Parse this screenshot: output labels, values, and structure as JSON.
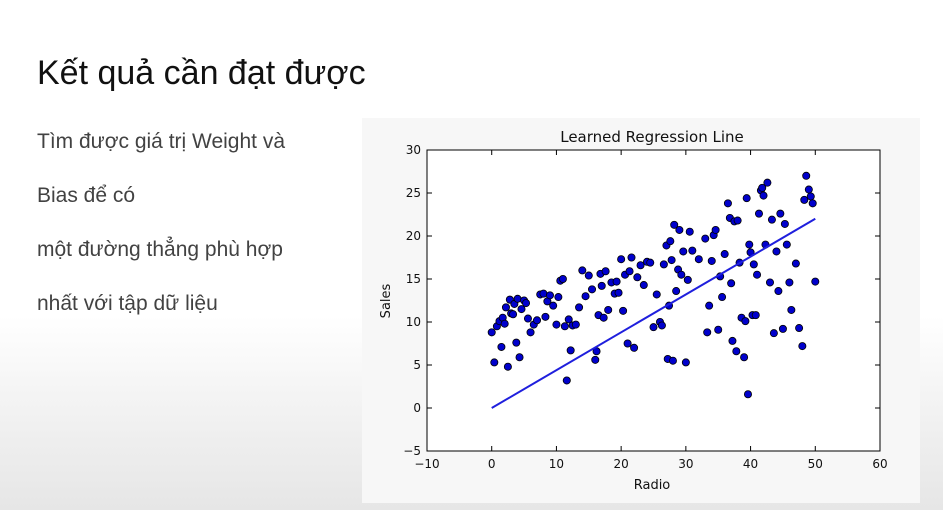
{
  "slide": {
    "title": "Kết quả cần đạt được",
    "bullets": [
      "Tìm được giá trị Weight và",
      "Bias để có",
      "một đường thẳng phù hợp",
      "nhất với tập dữ liệu"
    ]
  },
  "chart_data": {
    "type": "scatter",
    "title": "Learned Regression Line",
    "xlabel": "Radio",
    "ylabel": "Sales",
    "xlim": [
      -10,
      60
    ],
    "ylim": [
      -5,
      30
    ],
    "xticks": [
      "−10",
      "0",
      "10",
      "20",
      "30",
      "40",
      "50",
      "60"
    ],
    "yticks": [
      "−5",
      "0",
      "5",
      "10",
      "15",
      "20",
      "25",
      "30"
    ],
    "grid": false,
    "legend": "none",
    "point_color": "#0000cc",
    "line_color": "#1f1fdd",
    "regression_line": [
      [
        0,
        0
      ],
      [
        50,
        22
      ]
    ],
    "points": [
      [
        0,
        8.8
      ],
      [
        0.4,
        5.3
      ],
      [
        0.8,
        9.5
      ],
      [
        1.2,
        10.1
      ],
      [
        1.5,
        7.1
      ],
      [
        1.7,
        10.5
      ],
      [
        2,
        9.8
      ],
      [
        2.2,
        11.7
      ],
      [
        2.5,
        4.8
      ],
      [
        2.8,
        12.6
      ],
      [
        3,
        11
      ],
      [
        3.3,
        10.9
      ],
      [
        3.5,
        12.1
      ],
      [
        3.8,
        7.6
      ],
      [
        4,
        12.7
      ],
      [
        4.3,
        5.9
      ],
      [
        4.6,
        11.5
      ],
      [
        5,
        12.5
      ],
      [
        5.3,
        12.2
      ],
      [
        5.6,
        10.4
      ],
      [
        6,
        8.8
      ],
      [
        6.5,
        9.7
      ],
      [
        7,
        10.2
      ],
      [
        7.5,
        13.2
      ],
      [
        8,
        13.3
      ],
      [
        8.3,
        10.6
      ],
      [
        8.6,
        12.4
      ],
      [
        9,
        13.1
      ],
      [
        9.5,
        11.9
      ],
      [
        10,
        9.7
      ],
      [
        10.3,
        12.9
      ],
      [
        10.6,
        14.8
      ],
      [
        11,
        15
      ],
      [
        11.3,
        9.5
      ],
      [
        11.6,
        3.2
      ],
      [
        11.9,
        10.3
      ],
      [
        12.2,
        6.7
      ],
      [
        12.5,
        9.6
      ],
      [
        13,
        9.7
      ],
      [
        13.5,
        11.7
      ],
      [
        14,
        16
      ],
      [
        14.5,
        13
      ],
      [
        15,
        15.4
      ],
      [
        15.5,
        13.8
      ],
      [
        16,
        5.6
      ],
      [
        16.2,
        6.6
      ],
      [
        16.5,
        10.8
      ],
      [
        16.8,
        15.6
      ],
      [
        17,
        14.2
      ],
      [
        17.3,
        10.5
      ],
      [
        17.6,
        15.9
      ],
      [
        18,
        11.4
      ],
      [
        18.5,
        14.6
      ],
      [
        19,
        13.3
      ],
      [
        19.3,
        14.7
      ],
      [
        19.6,
        13.4
      ],
      [
        20,
        17.3
      ],
      [
        20.3,
        11.3
      ],
      [
        20.6,
        15.5
      ],
      [
        21,
        7.5
      ],
      [
        21.3,
        15.9
      ],
      [
        21.6,
        17.5
      ],
      [
        22,
        7
      ],
      [
        22.5,
        15.2
      ],
      [
        23,
        16.6
      ],
      [
        23.5,
        14.3
      ],
      [
        24,
        17
      ],
      [
        24.5,
        16.9
      ],
      [
        25,
        9.4
      ],
      [
        25.5,
        13.2
      ],
      [
        26,
        10
      ],
      [
        26.3,
        9.6
      ],
      [
        26.6,
        16.7
      ],
      [
        27,
        18.9
      ],
      [
        27.2,
        5.7
      ],
      [
        27.4,
        11.9
      ],
      [
        27.6,
        19.4
      ],
      [
        27.8,
        17.2
      ],
      [
        28,
        5.5
      ],
      [
        28.2,
        21.3
      ],
      [
        28.5,
        13.6
      ],
      [
        28.8,
        16.1
      ],
      [
        29,
        20.7
      ],
      [
        29.3,
        15.5
      ],
      [
        29.6,
        18.2
      ],
      [
        30,
        5.3
      ],
      [
        30.3,
        14.9
      ],
      [
        30.6,
        20.5
      ],
      [
        31,
        18.3
      ],
      [
        32,
        17.3
      ],
      [
        33,
        19.7
      ],
      [
        33.3,
        8.8
      ],
      [
        33.6,
        11.9
      ],
      [
        34,
        17.1
      ],
      [
        34.3,
        20.1
      ],
      [
        34.6,
        20.7
      ],
      [
        35,
        9.1
      ],
      [
        35.3,
        15.3
      ],
      [
        35.6,
        12.9
      ],
      [
        36,
        17.9
      ],
      [
        36.5,
        23.8
      ],
      [
        36.8,
        22.1
      ],
      [
        37,
        14.5
      ],
      [
        37.2,
        7.8
      ],
      [
        37.5,
        21.7
      ],
      [
        37.8,
        6.6
      ],
      [
        38,
        21.8
      ],
      [
        38.3,
        16.9
      ],
      [
        38.6,
        10.5
      ],
      [
        39,
        5.9
      ],
      [
        39.2,
        10.1
      ],
      [
        39.4,
        24.4
      ],
      [
        39.6,
        1.6
      ],
      [
        39.8,
        19
      ],
      [
        40,
        18.1
      ],
      [
        40.3,
        10.8
      ],
      [
        40.5,
        16.7
      ],
      [
        40.8,
        10.8
      ],
      [
        41,
        15.5
      ],
      [
        41.3,
        22.6
      ],
      [
        41.6,
        25.3
      ],
      [
        41.8,
        25.6
      ],
      [
        42,
        24.7
      ],
      [
        42.3,
        19
      ],
      [
        42.6,
        26.2
      ],
      [
        43,
        14.6
      ],
      [
        43.3,
        21.9
      ],
      [
        43.6,
        8.7
      ],
      [
        44,
        18.2
      ],
      [
        44.3,
        13.6
      ],
      [
        44.6,
        22.6
      ],
      [
        45,
        9.2
      ],
      [
        45.3,
        21.4
      ],
      [
        45.6,
        19
      ],
      [
        46,
        14.6
      ],
      [
        46.3,
        11.4
      ],
      [
        47,
        16.8
      ],
      [
        47.5,
        9.3
      ],
      [
        48,
        7.2
      ],
      [
        48.3,
        24.2
      ],
      [
        48.6,
        27
      ],
      [
        49,
        25.4
      ],
      [
        49.3,
        24.6
      ],
      [
        49.6,
        23.8
      ],
      [
        50,
        14.7
      ]
    ]
  }
}
